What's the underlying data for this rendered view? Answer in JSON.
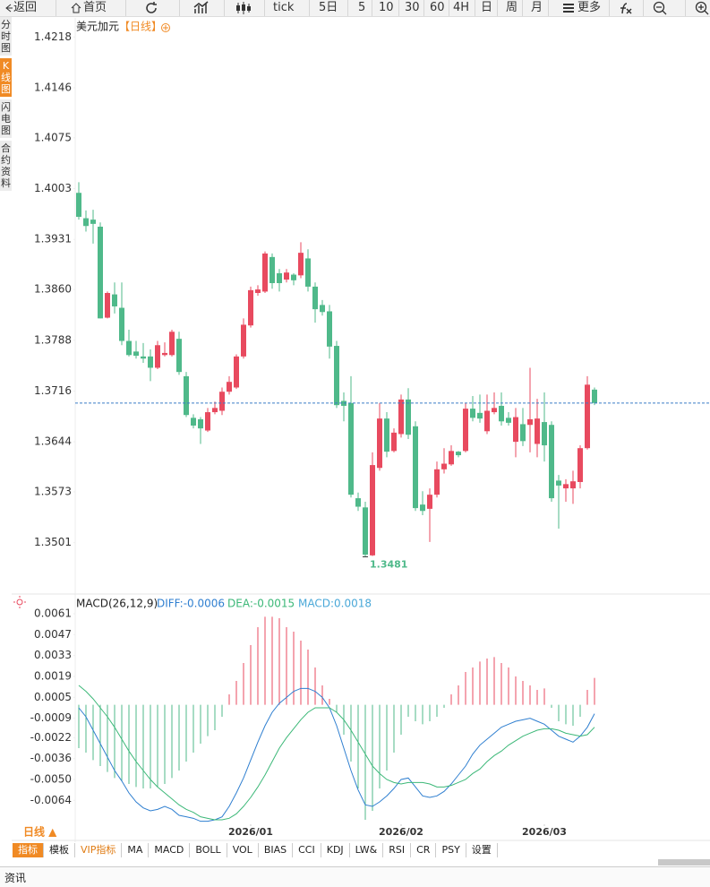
{
  "toolbar": [
    "返回",
    "首页",
    "tick",
    "5日",
    "5",
    "10",
    "30",
    "60",
    "4H",
    "日",
    "周",
    "月",
    "更多"
  ],
  "sidebar": [
    "分时图",
    "K线图",
    "闪电图",
    "合约资料"
  ],
  "sidebar_active": 1,
  "chart_data": [
    {
      "type": "candlestick",
      "title": "美元加元",
      "period": "【日线】",
      "up_color": "#e84a5f",
      "down_color": "#4fb98a",
      "ylim": [
        1.3432,
        1.4245
      ],
      "yticks": [
        1.4218,
        1.4146,
        1.4075,
        1.4003,
        1.3931,
        {
          "value": 1.386,
          "label": "1.3860"
        },
        1.3788,
        1.3716,
        1.3644,
        1.3573,
        1.3501
      ],
      "xticks": [
        {
          "value": 24,
          "label": "2026/01"
        },
        {
          "value": 45,
          "label": "2026/02"
        },
        {
          "value": 65,
          "label": "2026/03"
        }
      ],
      "open": [
        1.3997,
        1.3961,
        1.3959,
        1.3949,
        1.382,
        1.3853,
        1.3834,
        1.3787,
        1.3772,
        1.3765,
        1.3765,
        1.3749,
        1.3767,
        1.3767,
        1.379,
        1.3737,
        1.3678,
        1.3676,
        1.366,
        1.3686,
        1.3688,
        1.3715,
        1.3721,
        1.3765,
        1.3809,
        1.3855,
        1.3857,
        1.3906,
        1.3883,
        1.3874,
        1.3881,
        1.388,
        1.3904,
        1.3864,
        1.3838,
        1.3829,
        1.378,
        1.3702,
        1.3699,
        1.3564,
        1.3551,
        1.3483,
        1.3607,
        1.3677,
        1.3631,
        1.3655,
        1.3704,
        1.3666,
        1.3555,
        1.3549,
        1.3569,
        1.3605,
        1.3612,
        1.363,
        1.3631,
        1.3691,
        1.3685,
        1.3659,
        1.3686,
        1.3695,
        1.3678,
        1.3644,
        1.3669,
        1.3668,
        1.3641,
        1.3672,
        1.3668,
        1.3589,
        1.3578,
        1.3578,
        1.3587,
        1.3635,
        1.3718
      ],
      "high": [
        1.4012,
        1.3972,
        1.3973,
        1.3955,
        1.3857,
        1.387,
        1.387,
        1.3803,
        1.3787,
        1.3784,
        1.3775,
        1.3787,
        1.3785,
        1.3803,
        1.38,
        1.3743,
        1.3683,
        1.3679,
        1.3692,
        1.3701,
        1.3721,
        1.3737,
        1.3768,
        1.3819,
        1.3864,
        1.3866,
        1.3914,
        1.3911,
        1.3889,
        1.3889,
        1.3883,
        1.3927,
        1.3917,
        1.387,
        1.3845,
        1.3838,
        1.3787,
        1.3714,
        1.3737,
        1.3572,
        1.3559,
        1.3629,
        1.3699,
        1.3686,
        1.3663,
        1.3711,
        1.372,
        1.3673,
        1.3574,
        1.3578,
        1.3616,
        1.3635,
        1.3639,
        1.3631,
        1.3699,
        1.3709,
        1.3711,
        1.3711,
        1.3714,
        1.3714,
        1.3686,
        1.3692,
        1.3692,
        1.3749,
        1.3705,
        1.3714,
        1.3673,
        1.3597,
        1.3591,
        1.3603,
        1.3639,
        1.3737,
        1.3721
      ],
      "low": [
        1.3959,
        1.3942,
        1.3925,
        1.3819,
        1.3819,
        1.3826,
        1.3781,
        1.3765,
        1.3762,
        1.3756,
        1.373,
        1.3747,
        1.3765,
        1.3765,
        1.3739,
        1.3679,
        1.3663,
        1.3641,
        1.3658,
        1.3683,
        1.3682,
        1.3711,
        1.3719,
        1.3762,
        1.3806,
        1.3851,
        1.3855,
        1.3861,
        1.3857,
        1.387,
        1.3866,
        1.3876,
        1.3857,
        1.3813,
        1.3823,
        1.3762,
        1.3692,
        1.3673,
        1.3565,
        1.3546,
        1.3481,
        1.3482,
        1.3603,
        1.3622,
        1.3629,
        1.365,
        1.3648,
        1.3546,
        1.354,
        1.3502,
        1.3565,
        1.3599,
        1.361,
        1.3622,
        1.3629,
        1.3673,
        1.3671,
        1.3655,
        1.3683,
        1.3667,
        1.3667,
        1.3622,
        1.3638,
        1.3629,
        1.3622,
        1.3616,
        1.3559,
        1.3521,
        1.3559,
        1.3556,
        1.3578,
        1.3633,
        1.3696
      ],
      "close": [
        1.3963,
        1.395,
        1.3953,
        1.3819,
        1.3855,
        1.3836,
        1.3787,
        1.3767,
        1.3766,
        1.3762,
        1.3749,
        1.3781,
        1.377,
        1.38,
        1.3743,
        1.3682,
        1.3667,
        1.3663,
        1.3686,
        1.3692,
        1.3715,
        1.3729,
        1.3765,
        1.381,
        1.3859,
        1.386,
        1.3911,
        1.3869,
        1.3869,
        1.3884,
        1.3873,
        1.3912,
        1.3864,
        1.3832,
        1.3828,
        1.3779,
        1.3696,
        1.3695,
        1.3569,
        1.3552,
        1.3484,
        1.3611,
        1.3677,
        1.363,
        1.3657,
        1.3704,
        1.3654,
        1.355,
        1.3546,
        1.3569,
        1.3605,
        1.3613,
        1.3631,
        1.3625,
        1.3691,
        1.3678,
        1.3677,
        1.3688,
        1.3692,
        1.3673,
        1.3671,
        1.3679,
        1.3645,
        1.3676,
        1.3677,
        1.3639,
        1.3564,
        1.3582,
        1.3584,
        1.3588,
        1.3635,
        1.3725,
        1.3699
      ]
    },
    {
      "type": "macd",
      "title": "MACD(26,12,9)",
      "ylim": [
        -0.008,
        0.0067
      ],
      "yticks": [
        0.0061,
        0.0047,
        0.0033,
        0.0019,
        0.0005,
        -0.0009,
        -0.0022,
        -0.0036,
        {
          "value": -0.005,
          "label": "-0.0050"
        },
        -0.0064
      ],
      "series": [
        {
          "label": "DIFF:-0.0006",
          "color": "#2f7fd0",
          "values": [
            -0.0002,
            -0.0008,
            -0.0017,
            -0.0026,
            -0.0035,
            -0.0044,
            -0.0051,
            -0.0059,
            -0.0065,
            -0.0069,
            -0.0071,
            -0.007,
            -0.0068,
            -0.007,
            -0.0074,
            -0.0075,
            -0.0076,
            -0.0078,
            -0.0078,
            -0.0077,
            -0.0075,
            -0.0068,
            -0.0059,
            -0.0049,
            -0.0037,
            -0.0025,
            -0.0014,
            -0.0005,
            0.0001,
            0.0005,
            0.0009,
            0.0011,
            0.0011,
            0.0009,
            0.0005,
            -0.0002,
            -0.0014,
            -0.0029,
            -0.0044,
            -0.0057,
            -0.0067,
            -0.0068,
            -0.0065,
            -0.0061,
            -0.0056,
            -0.005,
            -0.0049,
            -0.0055,
            -0.0061,
            -0.0062,
            -0.0061,
            -0.0058,
            -0.0053,
            -0.0047,
            -0.0041,
            -0.0033,
            -0.0027,
            -0.0023,
            -0.0019,
            -0.0015,
            -0.0013,
            -0.0011,
            -0.001,
            -0.0009,
            -0.0011,
            -0.0013,
            -0.0017,
            -0.0021,
            -0.0023,
            -0.0025,
            -0.0021,
            -0.0015,
            -0.0006
          ]
        },
        {
          "label": "DEA:-0.0015",
          "color": "#3cb878",
          "values": [
            0.0013,
            0.0009,
            0.0004,
            -0.0002,
            -0.0008,
            -0.0015,
            -0.0023,
            -0.0031,
            -0.0038,
            -0.0044,
            -0.005,
            -0.0055,
            -0.0059,
            -0.0063,
            -0.0067,
            -0.007,
            -0.0072,
            -0.0075,
            -0.0076,
            -0.0077,
            -0.0077,
            -0.0076,
            -0.0073,
            -0.0068,
            -0.0062,
            -0.0055,
            -0.0047,
            -0.0038,
            -0.0029,
            -0.0022,
            -0.0016,
            -0.001,
            -0.0005,
            -0.0002,
            -0.0002,
            -0.0002,
            -0.0005,
            -0.001,
            -0.0017,
            -0.0025,
            -0.0033,
            -0.0041,
            -0.0046,
            -0.005,
            -0.0052,
            -0.0053,
            -0.0052,
            -0.0052,
            -0.0052,
            -0.0053,
            -0.0055,
            -0.0055,
            -0.0054,
            -0.0052,
            -0.005,
            -0.0046,
            -0.0043,
            -0.0038,
            -0.0034,
            -0.0031,
            -0.0027,
            -0.0024,
            -0.0021,
            -0.0019,
            -0.0017,
            -0.0016,
            -0.0016,
            -0.0017,
            -0.0019,
            -0.002,
            -0.0021,
            -0.002,
            -0.0015
          ]
        }
      ],
      "histogram": {
        "label": "MACD:0.0018",
        "color": "#4aa8d8",
        "up_color": "#e84a5f",
        "down_color": "#4fb98a",
        "values": [
          -0.0029,
          -0.0032,
          -0.0037,
          -0.0041,
          -0.0045,
          -0.0049,
          -0.0051,
          -0.0053,
          -0.0055,
          -0.0056,
          -0.0056,
          -0.0055,
          -0.0053,
          -0.0049,
          -0.0044,
          -0.0038,
          -0.0032,
          -0.0026,
          -0.0021,
          -0.0017,
          -0.0008,
          0.0007,
          0.0016,
          0.0028,
          0.004,
          0.0052,
          0.0059,
          0.0059,
          0.0058,
          0.0052,
          0.0049,
          0.0043,
          0.0037,
          0.0025,
          0.0013,
          0.0004,
          -0.0005,
          -0.002,
          -0.0038,
          -0.0056,
          -0.0077,
          -0.0071,
          -0.0056,
          -0.0044,
          -0.0032,
          -0.002,
          -0.0008,
          -0.0011,
          -0.0013,
          -0.0011,
          -0.0008,
          -0.0002,
          0.0007,
          0.0013,
          0.0022,
          0.0025,
          0.0029,
          0.0031,
          0.0032,
          0.0028,
          0.0025,
          0.0019,
          0.0016,
          0.0013,
          0.001,
          0.0011,
          -0.0002,
          -0.0011,
          -0.0013,
          -0.0014,
          -0.0008,
          0.001,
          0.0018
        ]
      }
    }
  ],
  "period_selector": "日线 ▲",
  "tabs": [
    "指标",
    "模板",
    "VIP指标",
    "MA",
    "MACD",
    "BOLL",
    "VOL",
    "BIAS",
    "CCI",
    "KDJ",
    "LW&",
    "RSI",
    "CR",
    "PSY",
    "设置"
  ],
  "active_tab": 0,
  "vip_tab": 2,
  "status": "资讯"
}
